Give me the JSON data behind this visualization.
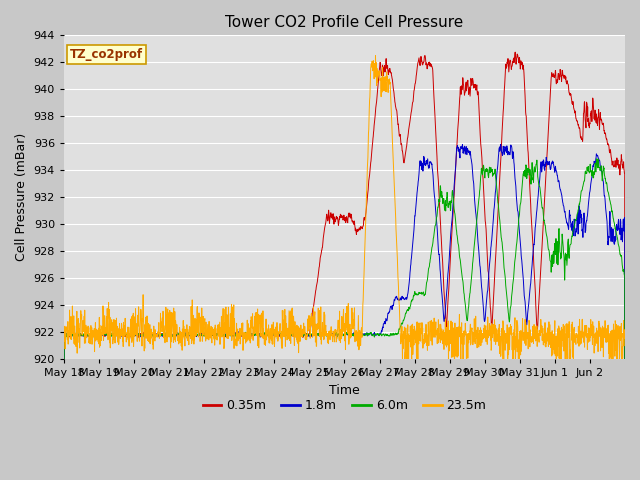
{
  "title": "Tower CO2 Profile Cell Pressure",
  "xlabel": "Time",
  "ylabel": "Cell Pressure (mBar)",
  "ylim": [
    920,
    944
  ],
  "yticks": [
    920,
    922,
    924,
    926,
    928,
    930,
    932,
    934,
    936,
    938,
    940,
    942,
    944
  ],
  "xtick_labels": [
    "May 18",
    "May 19",
    "May 20",
    "May 21",
    "May 22",
    "May 23",
    "May 24",
    "May 25",
    "May 26",
    "May 27",
    "May 28",
    "May 29",
    "May 30",
    "May 31",
    "Jun 1",
    "Jun 2"
  ],
  "n_points": 2000,
  "base_pressure": 921.8,
  "colors": {
    "red": "#cc0000",
    "blue": "#0000cc",
    "green": "#00aa00",
    "orange": "#ffaa00"
  },
  "series_labels": [
    "0.35m",
    "1.8m",
    "6.0m",
    "23.5m"
  ],
  "legend_label": "TZ_co2prof",
  "legend_label_color": "#993300",
  "legend_bg": "#ffffcc",
  "legend_border": "#cc9900",
  "fig_bg": "#c8c8c8",
  "plot_bg": "#e0e0e0",
  "grid_color": "#ffffff",
  "title_fontsize": 11,
  "axis_label_fontsize": 9,
  "tick_fontsize": 8
}
